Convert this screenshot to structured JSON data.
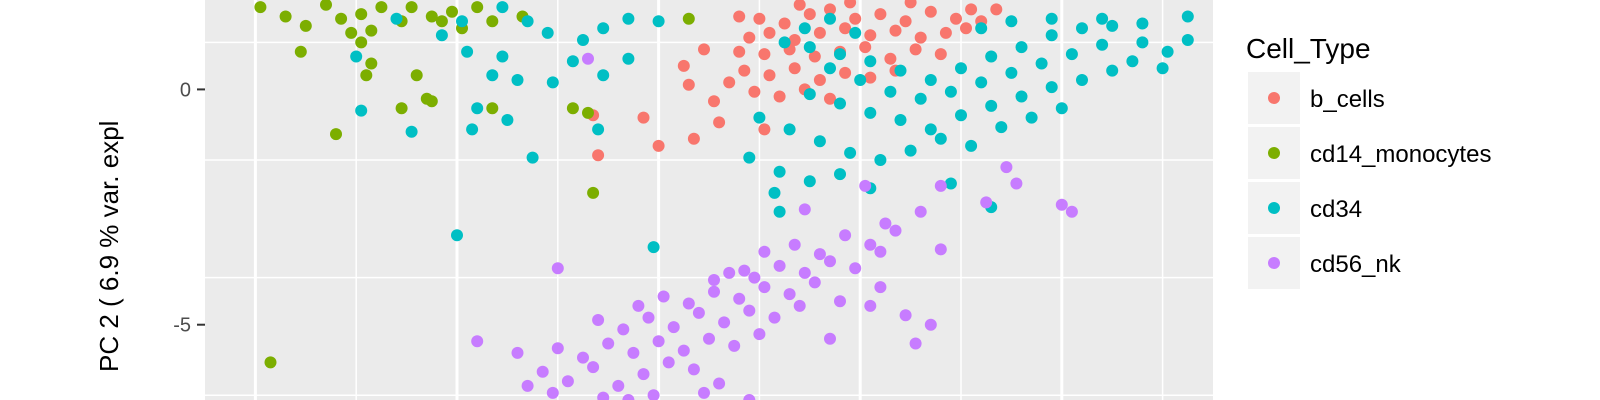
{
  "chart_data": {
    "type": "scatter",
    "ylabel": "PC 2 ( 6.9 % var. expl",
    "y_ticks": [
      {
        "value": 0,
        "label": "0"
      },
      {
        "value": -5,
        "label": "-5"
      }
    ],
    "xlim": [
      0,
      10
    ],
    "ylim": [
      -6.6,
      1.9
    ],
    "grid": true,
    "legend": {
      "title": "Cell_Type",
      "position": "right",
      "entries": [
        "b_cells",
        "cd14_monocytes",
        "cd34",
        "cd56_nk"
      ]
    },
    "series": [
      {
        "name": "b_cells",
        "color": "#F8766D",
        "points": [
          [
            5.3,
            1.55
          ],
          [
            5.5,
            1.5
          ],
          [
            5.75,
            1.4
          ],
          [
            6.0,
            1.6
          ],
          [
            6.2,
            1.7
          ],
          [
            6.45,
            1.5
          ],
          [
            6.7,
            1.6
          ],
          [
            6.95,
            1.45
          ],
          [
            7.2,
            1.65
          ],
          [
            7.45,
            1.5
          ],
          [
            7.6,
            1.7
          ],
          [
            5.4,
            1.1
          ],
          [
            5.6,
            1.2
          ],
          [
            5.85,
            1.05
          ],
          [
            6.1,
            1.2
          ],
          [
            6.35,
            1.3
          ],
          [
            6.6,
            1.15
          ],
          [
            6.85,
            1.25
          ],
          [
            7.1,
            1.1
          ],
          [
            7.35,
            1.2
          ],
          [
            7.55,
            1.3
          ],
          [
            5.3,
            0.8
          ],
          [
            5.55,
            0.75
          ],
          [
            5.8,
            0.85
          ],
          [
            6.05,
            0.7
          ],
          [
            6.3,
            0.8
          ],
          [
            6.55,
            0.9
          ],
          [
            6.8,
            0.65
          ],
          [
            7.05,
            0.85
          ],
          [
            7.3,
            0.75
          ],
          [
            5.35,
            0.4
          ],
          [
            5.6,
            0.3
          ],
          [
            5.85,
            0.45
          ],
          [
            6.1,
            0.2
          ],
          [
            6.35,
            0.35
          ],
          [
            6.6,
            0.25
          ],
          [
            6.85,
            0.4
          ],
          [
            5.2,
            0.15
          ],
          [
            5.45,
            -0.05
          ],
          [
            5.7,
            -0.15
          ],
          [
            5.95,
            0.0
          ],
          [
            6.2,
            -0.2
          ],
          [
            4.95,
            0.85
          ],
          [
            4.75,
            0.5
          ],
          [
            4.8,
            0.1
          ],
          [
            5.05,
            -0.25
          ],
          [
            5.1,
            -0.7
          ],
          [
            4.85,
            -1.05
          ],
          [
            4.35,
            -0.6
          ],
          [
            4.5,
            -1.2
          ],
          [
            3.85,
            -0.55
          ],
          [
            3.9,
            -1.4
          ],
          [
            5.55,
            -0.85
          ],
          [
            7.7,
            1.45
          ],
          [
            7.85,
            1.7
          ],
          [
            7.0,
            1.85
          ],
          [
            6.4,
            1.85
          ],
          [
            5.9,
            1.8
          ]
        ]
      },
      {
        "name": "cd14_monocytes",
        "color": "#7CAE00",
        "points": [
          [
            0.55,
            1.75
          ],
          [
            0.8,
            1.55
          ],
          [
            1.0,
            1.35
          ],
          [
            1.2,
            1.8
          ],
          [
            1.35,
            1.5
          ],
          [
            1.55,
            1.6
          ],
          [
            1.75,
            1.75
          ],
          [
            1.95,
            1.45
          ],
          [
            2.05,
            1.75
          ],
          [
            2.25,
            1.55
          ],
          [
            2.45,
            1.65
          ],
          [
            2.7,
            1.75
          ],
          [
            2.85,
            1.45
          ],
          [
            1.65,
            1.25
          ],
          [
            2.55,
            1.3
          ],
          [
            0.95,
            0.8
          ],
          [
            1.55,
            1.0
          ],
          [
            1.65,
            0.55
          ],
          [
            1.6,
            0.3
          ],
          [
            2.1,
            0.3
          ],
          [
            1.95,
            -0.4
          ],
          [
            2.2,
            -0.2
          ],
          [
            2.25,
            -0.25
          ],
          [
            1.3,
            -0.95
          ],
          [
            2.85,
            -0.4
          ],
          [
            3.65,
            -0.4
          ],
          [
            3.8,
            -0.5
          ],
          [
            3.85,
            -2.2
          ],
          [
            4.8,
            1.5
          ],
          [
            0.65,
            -5.8
          ],
          [
            2.35,
            1.45
          ],
          [
            1.45,
            1.2
          ],
          [
            3.15,
            1.55
          ]
        ]
      },
      {
        "name": "cd34",
        "color": "#00BFC4",
        "points": [
          [
            6.0,
            0.9
          ],
          [
            6.3,
            0.75
          ],
          [
            6.6,
            0.6
          ],
          [
            6.9,
            0.4
          ],
          [
            7.2,
            0.2
          ],
          [
            7.5,
            0.45
          ],
          [
            7.8,
            0.7
          ],
          [
            8.1,
            0.9
          ],
          [
            8.4,
            1.15
          ],
          [
            8.7,
            1.3
          ],
          [
            9.0,
            1.35
          ],
          [
            9.3,
            1.0
          ],
          [
            9.55,
            0.8
          ],
          [
            9.75,
            1.05
          ],
          [
            6.2,
            0.45
          ],
          [
            6.5,
            0.2
          ],
          [
            6.8,
            -0.05
          ],
          [
            7.1,
            -0.2
          ],
          [
            7.4,
            -0.05
          ],
          [
            7.7,
            0.15
          ],
          [
            8.0,
            0.35
          ],
          [
            8.3,
            0.55
          ],
          [
            8.6,
            0.75
          ],
          [
            8.9,
            0.95
          ],
          [
            9.2,
            0.6
          ],
          [
            9.5,
            0.45
          ],
          [
            6.0,
            -0.1
          ],
          [
            6.3,
            -0.3
          ],
          [
            6.6,
            -0.5
          ],
          [
            6.9,
            -0.65
          ],
          [
            7.2,
            -0.85
          ],
          [
            7.5,
            -0.55
          ],
          [
            7.8,
            -0.35
          ],
          [
            8.1,
            -0.15
          ],
          [
            8.4,
            0.05
          ],
          [
            8.7,
            0.2
          ],
          [
            9.0,
            0.4
          ],
          [
            5.5,
            -0.6
          ],
          [
            5.8,
            -0.85
          ],
          [
            6.1,
            -1.1
          ],
          [
            6.4,
            -1.35
          ],
          [
            6.7,
            -1.5
          ],
          [
            7.0,
            -1.3
          ],
          [
            7.3,
            -1.05
          ],
          [
            7.6,
            -1.2
          ],
          [
            7.9,
            -0.8
          ],
          [
            8.2,
            -0.6
          ],
          [
            8.5,
            -0.4
          ],
          [
            5.4,
            -1.45
          ],
          [
            5.7,
            -1.75
          ],
          [
            6.0,
            -1.95
          ],
          [
            6.3,
            -1.8
          ],
          [
            6.6,
            -2.1
          ],
          [
            5.65,
            -2.2
          ],
          [
            5.7,
            -2.6
          ],
          [
            7.4,
            -2.0
          ],
          [
            7.8,
            -2.5
          ],
          [
            5.75,
            1.0
          ],
          [
            5.95,
            1.3
          ],
          [
            6.2,
            1.5
          ],
          [
            6.45,
            1.2
          ],
          [
            7.7,
            1.3
          ],
          [
            8.0,
            1.45
          ],
          [
            8.4,
            1.5
          ],
          [
            8.9,
            1.5
          ],
          [
            9.3,
            1.4
          ],
          [
            9.75,
            1.55
          ],
          [
            1.9,
            1.5
          ],
          [
            2.35,
            1.15
          ],
          [
            2.55,
            1.45
          ],
          [
            2.95,
            1.75
          ],
          [
            3.2,
            1.45
          ],
          [
            3.4,
            1.2
          ],
          [
            3.75,
            1.05
          ],
          [
            3.95,
            1.3
          ],
          [
            4.2,
            1.5
          ],
          [
            4.5,
            1.45
          ],
          [
            2.85,
            0.3
          ],
          [
            3.1,
            0.2
          ],
          [
            3.45,
            0.15
          ],
          [
            3.65,
            0.6
          ],
          [
            3.95,
            0.3
          ],
          [
            4.2,
            0.65
          ],
          [
            1.55,
            -0.45
          ],
          [
            2.05,
            -0.9
          ],
          [
            2.65,
            -0.85
          ],
          [
            3.25,
            -1.45
          ],
          [
            3.9,
            -0.85
          ],
          [
            3.0,
            -0.65
          ],
          [
            2.6,
            0.8
          ],
          [
            2.7,
            -0.4
          ],
          [
            2.5,
            -3.1
          ],
          [
            4.45,
            -3.35
          ],
          [
            2.95,
            0.7
          ],
          [
            1.5,
            0.7
          ]
        ]
      },
      {
        "name": "cd56_nk",
        "color": "#C77CFF",
        "points": [
          [
            3.35,
            -6.0
          ],
          [
            3.6,
            -6.2
          ],
          [
            3.85,
            -5.9
          ],
          [
            4.1,
            -6.3
          ],
          [
            4.35,
            -6.05
          ],
          [
            4.6,
            -5.8
          ],
          [
            4.85,
            -5.95
          ],
          [
            5.1,
            -6.25
          ],
          [
            3.45,
            -6.45
          ],
          [
            3.95,
            -6.55
          ],
          [
            4.45,
            -6.5
          ],
          [
            4.95,
            -6.45
          ],
          [
            3.5,
            -5.5
          ],
          [
            3.75,
            -5.7
          ],
          [
            4.0,
            -5.4
          ],
          [
            4.25,
            -5.6
          ],
          [
            4.5,
            -5.35
          ],
          [
            4.75,
            -5.55
          ],
          [
            5.0,
            -5.3
          ],
          [
            5.25,
            -5.45
          ],
          [
            5.5,
            -5.2
          ],
          [
            3.9,
            -4.9
          ],
          [
            4.15,
            -5.1
          ],
          [
            4.4,
            -4.85
          ],
          [
            4.65,
            -5.05
          ],
          [
            4.9,
            -4.75
          ],
          [
            5.15,
            -4.95
          ],
          [
            5.4,
            -4.7
          ],
          [
            5.65,
            -4.85
          ],
          [
            5.9,
            -4.6
          ],
          [
            4.55,
            -4.4
          ],
          [
            4.8,
            -4.55
          ],
          [
            5.05,
            -4.3
          ],
          [
            5.3,
            -4.45
          ],
          [
            5.55,
            -4.2
          ],
          [
            5.8,
            -4.35
          ],
          [
            6.05,
            -4.1
          ],
          [
            6.3,
            -4.5
          ],
          [
            5.2,
            -3.9
          ],
          [
            5.45,
            -4.0
          ],
          [
            5.7,
            -3.75
          ],
          [
            5.95,
            -3.9
          ],
          [
            6.2,
            -3.65
          ],
          [
            6.45,
            -3.8
          ],
          [
            5.55,
            -3.45
          ],
          [
            5.85,
            -3.3
          ],
          [
            6.1,
            -3.5
          ],
          [
            6.35,
            -3.1
          ],
          [
            6.6,
            -3.3
          ],
          [
            6.85,
            -3.0
          ],
          [
            7.1,
            -2.6
          ],
          [
            7.3,
            -3.4
          ],
          [
            6.95,
            -4.8
          ],
          [
            7.2,
            -5.0
          ],
          [
            7.05,
            -5.4
          ],
          [
            6.7,
            -4.2
          ],
          [
            6.6,
            -4.6
          ],
          [
            2.7,
            -5.35
          ],
          [
            3.1,
            -5.6
          ],
          [
            3.5,
            -3.8
          ],
          [
            4.3,
            -4.6
          ],
          [
            5.05,
            -4.05
          ],
          [
            6.7,
            -3.45
          ],
          [
            7.75,
            -2.4
          ],
          [
            7.95,
            -1.65
          ],
          [
            8.05,
            -2.0
          ],
          [
            5.95,
            -2.55
          ],
          [
            6.55,
            -2.05
          ],
          [
            6.75,
            -2.85
          ],
          [
            7.3,
            -2.05
          ],
          [
            8.5,
            -2.45
          ],
          [
            8.6,
            -2.6
          ],
          [
            5.35,
            -3.85
          ],
          [
            3.8,
            0.65
          ],
          [
            3.2,
            -6.3
          ],
          [
            4.2,
            -6.6
          ],
          [
            5.4,
            -6.6
          ],
          [
            6.2,
            -5.3
          ]
        ]
      }
    ]
  }
}
